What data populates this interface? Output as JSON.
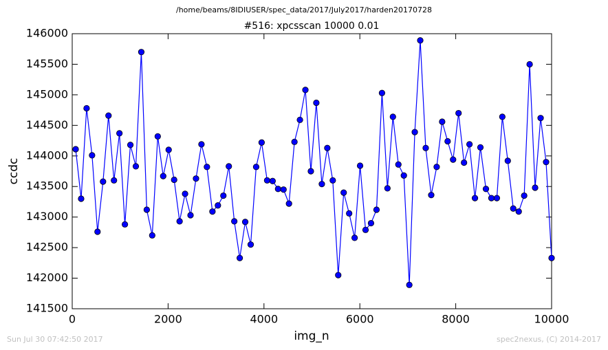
{
  "chart_data": {
    "type": "line",
    "title": "/home/beams/8IDIUSER/spec_data/2017/July2017/harden20170728",
    "subtitle": "#516: xpcsscan 10000 0.01",
    "xlabel": "img_n",
    "ylabel": "ccdc",
    "footer_left": "Sun Jul 30 07:42:50 2017",
    "footer_right": "spec2nexus, (C) 2014-2017",
    "xlim": [
      0,
      10000
    ],
    "xticks": [
      0,
      2000,
      4000,
      6000,
      8000,
      10000
    ],
    "ylim": [
      141500,
      146000
    ],
    "yticks": [
      141500,
      142000,
      142500,
      143000,
      143500,
      144000,
      144500,
      145000,
      145500,
      146000
    ],
    "grid": false,
    "x": [
      72,
      186,
      300,
      414,
      528,
      643,
      757,
      871,
      985,
      1099,
      1213,
      1327,
      1441,
      1555,
      1669,
      1784,
      1898,
      2012,
      2126,
      2240,
      2354,
      2468,
      2582,
      2696,
      2810,
      2925,
      3039,
      3153,
      3267,
      3381,
      3495,
      3609,
      3723,
      3837,
      3951,
      4066,
      4180,
      4294,
      4408,
      4522,
      4636,
      4750,
      4864,
      4978,
      5092,
      5207,
      5321,
      5435,
      5549,
      5663,
      5777,
      5891,
      6005,
      6119,
      6233,
      6348,
      6462,
      6576,
      6690,
      6804,
      6918,
      7032,
      7146,
      7260,
      7374,
      7489,
      7603,
      7717,
      7831,
      7945,
      8059,
      8173,
      8287,
      8401,
      8515,
      8630,
      8744,
      8858,
      8972,
      9086,
      9200,
      9314,
      9428,
      9542,
      9656,
      9771,
      9885,
      10000
    ],
    "series": [
      {
        "name": "ccdc",
        "color": "#0000ff",
        "values": [
          144110,
          143300,
          144780,
          144010,
          142760,
          143580,
          144660,
          143600,
          144370,
          142880,
          144180,
          143830,
          145700,
          143120,
          142700,
          144320,
          143670,
          144100,
          143610,
          142930,
          143380,
          143030,
          143630,
          144190,
          143820,
          143090,
          143190,
          143350,
          143830,
          142930,
          142330,
          142920,
          142550,
          143820,
          144220,
          143600,
          143590,
          143460,
          143450,
          143220,
          144230,
          144590,
          145080,
          143750,
          144870,
          143540,
          144130,
          143600,
          142050,
          143400,
          143060,
          142660,
          143840,
          142790,
          142900,
          143120,
          145030,
          143470,
          144640,
          143860,
          143680,
          141890,
          144390,
          145890,
          144130,
          143360,
          143820,
          144560,
          144240,
          143940,
          144700,
          143890,
          144190,
          143310,
          144140,
          143460,
          143310,
          143310,
          144640,
          143920,
          143140,
          143090,
          143350,
          145500,
          143480,
          144620,
          143900,
          142330
        ]
      }
    ]
  }
}
